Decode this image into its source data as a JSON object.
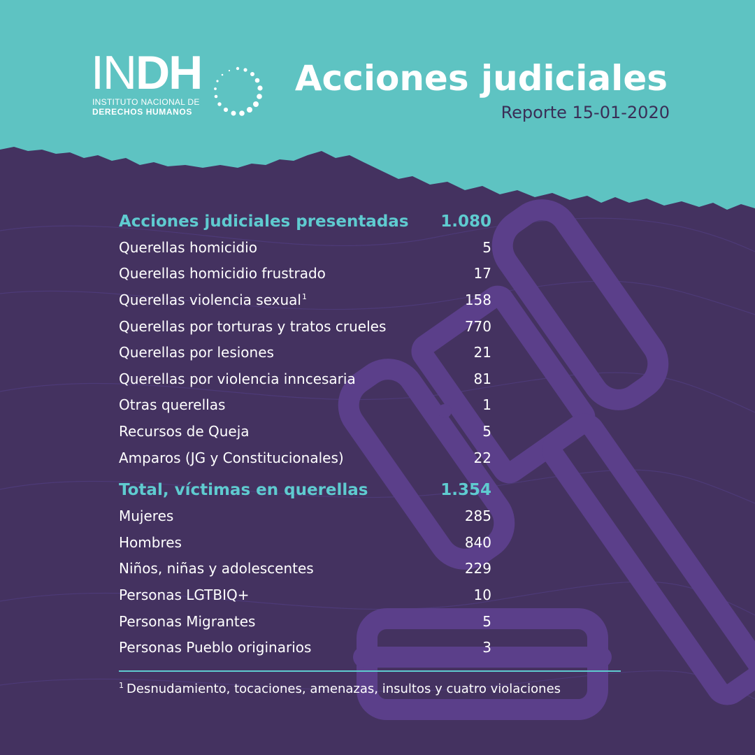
{
  "colors": {
    "teal_band": "#5ec3c2",
    "purple_bg": "#443260",
    "accent_teal": "#5fcbd0",
    "gavel_purple": "#5b3f8a",
    "dark_text": "#3a2e57"
  },
  "logo": {
    "word_thin": "IN",
    "word_bold": "DH",
    "subtitle_line1": "INSTITUTO NACIONAL DE",
    "subtitle_line2": "DERECHOS HUMANOS",
    "icon": "dotted-circle-icon"
  },
  "header": {
    "title": "Acciones judiciales",
    "subtitle": "Reporte 15-01-2020"
  },
  "section1": {
    "label": "Acciones judiciales presentadas",
    "total": "1.080",
    "rows": [
      {
        "label": "Querellas homicidio",
        "value": "5"
      },
      {
        "label": "Querellas homicidio frustrado",
        "value": "17"
      },
      {
        "label": "Querellas violencia sexual",
        "value": "158"
      },
      {
        "label": "Querellas por torturas y tratos crueles",
        "value": "770"
      },
      {
        "label": "Querellas por lesiones",
        "value": "21"
      },
      {
        "label": "Querellas por violencia inncesaria",
        "value": "81"
      },
      {
        "label": "Otras querellas",
        "value": "1"
      },
      {
        "label": "Recursos de Queja",
        "value": "5"
      },
      {
        "label": "Amparos (JG y Constitucionales)",
        "value": "22"
      }
    ]
  },
  "section2": {
    "label": "Total, víctimas en querellas",
    "total": "1.354",
    "rows": [
      {
        "label": "Mujeres",
        "value": "285"
      },
      {
        "label": "Hombres",
        "value": "840"
      },
      {
        "label": "Niños, niñas y adolescentes",
        "value": "229"
      },
      {
        "label": "Personas LGTBIQ+",
        "value": "10"
      },
      {
        "label": "Personas Migrantes",
        "value": "5"
      },
      {
        "label": "Personas Pueblo originarios",
        "value": "3"
      }
    ]
  },
  "footnote": {
    "marker": "1",
    "text": "Desnudamiento, tocaciones, amenazas, insultos y cuatro violaciones"
  },
  "background": {
    "icon": "gavel-icon"
  }
}
